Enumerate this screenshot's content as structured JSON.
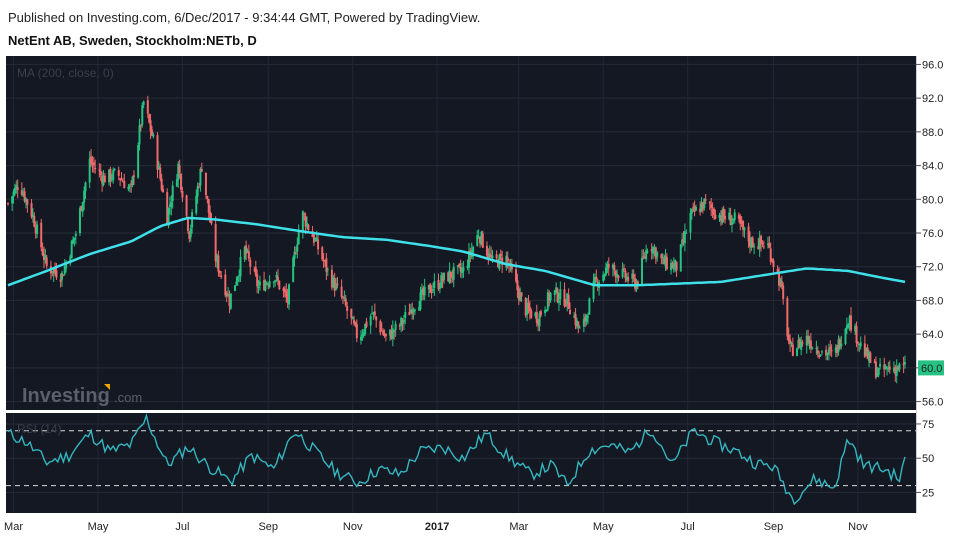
{
  "header": {
    "published": "Published on Investing.com, 6/Dec/2017 - 9:34:44 GMT, Powered by TradingView.",
    "symbol": "NetEnt AB, Sweden, Stockholm:NETb, D"
  },
  "indicators": {
    "ma_label": "MA (200, close, 0)",
    "rsi_label": "RSI (14)"
  },
  "logo": {
    "brand": "Investing",
    "suffix": ".com"
  },
  "colors": {
    "background": "#141823",
    "up": "#26c281",
    "down": "#ef6a6a",
    "ma": "#3ee0ea",
    "rsi": "#35b6bf",
    "price_tag": "#26c281"
  },
  "chart_data": {
    "type": "candlestick",
    "price_axis": {
      "ylim": [
        55,
        97
      ],
      "ticks": [
        "96.0",
        "92.0",
        "88.0",
        "84.0",
        "80.0",
        "76.0",
        "72.0",
        "68.0",
        "64.0",
        "60.0",
        "56.0"
      ]
    },
    "rsi_axis": {
      "ylim": [
        10,
        83
      ],
      "ticks": [
        "75",
        "50",
        "25"
      ],
      "bands": [
        30,
        70
      ]
    },
    "x_labels": [
      {
        "label": "Mar",
        "bold": false
      },
      {
        "label": "May",
        "bold": false
      },
      {
        "label": "Jul",
        "bold": false
      },
      {
        "label": "Sep",
        "bold": false
      },
      {
        "label": "Nov",
        "bold": false
      },
      {
        "label": "2017",
        "bold": true
      },
      {
        "label": "Mar",
        "bold": false
      },
      {
        "label": "May",
        "bold": false
      },
      {
        "label": "Jul",
        "bold": false
      },
      {
        "label": "Sep",
        "bold": false
      },
      {
        "label": "Nov",
        "bold": false
      }
    ],
    "last_price": "60.0",
    "price_path": [
      [
        "2016-02-26",
        79.5
      ],
      [
        "2016-03-05",
        82.0
      ],
      [
        "2016-03-15",
        78.0
      ],
      [
        "2016-03-25",
        72.0
      ],
      [
        "2016-04-05",
        71.0
      ],
      [
        "2016-04-15",
        76.0
      ],
      [
        "2016-04-25",
        84.5
      ],
      [
        "2016-05-05",
        82.5
      ],
      [
        "2016-05-15",
        83.0
      ],
      [
        "2016-05-25",
        81.0
      ],
      [
        "2016-06-03",
        91.5
      ],
      [
        "2016-06-10",
        87.0
      ],
      [
        "2016-06-20",
        78.0
      ],
      [
        "2016-06-28",
        84.0
      ],
      [
        "2016-07-06",
        76.0
      ],
      [
        "2016-07-15",
        84.0
      ],
      [
        "2016-07-25",
        73.0
      ],
      [
        "2016-08-04",
        68.0
      ],
      [
        "2016-08-15",
        74.0
      ],
      [
        "2016-08-25",
        69.5
      ],
      [
        "2016-09-05",
        71.0
      ],
      [
        "2016-09-15",
        68.0
      ],
      [
        "2016-09-25",
        78.5
      ],
      [
        "2016-10-05",
        75.0
      ],
      [
        "2016-10-15",
        71.0
      ],
      [
        "2016-10-25",
        68.0
      ],
      [
        "2016-11-05",
        63.5
      ],
      [
        "2016-11-15",
        66.5
      ],
      [
        "2016-11-25",
        63.5
      ],
      [
        "2016-12-05",
        65.0
      ],
      [
        "2016-12-15",
        67.5
      ],
      [
        "2016-12-28",
        69.5
      ],
      [
        "2017-01-10",
        71.0
      ],
      [
        "2017-01-20",
        71.5
      ],
      [
        "2017-01-31",
        76.0
      ],
      [
        "2017-02-10",
        72.5
      ],
      [
        "2017-02-20",
        73.0
      ],
      [
        "2017-03-05",
        67.0
      ],
      [
        "2017-03-15",
        66.0
      ],
      [
        "2017-03-25",
        69.0
      ],
      [
        "2017-04-05",
        68.0
      ],
      [
        "2017-04-15",
        64.0
      ],
      [
        "2017-04-25",
        70.0
      ],
      [
        "2017-05-05",
        72.0
      ],
      [
        "2017-05-15",
        71.0
      ],
      [
        "2017-05-25",
        70.0
      ],
      [
        "2017-06-03",
        75.0
      ],
      [
        "2017-06-13",
        72.5
      ],
      [
        "2017-06-23",
        72.0
      ],
      [
        "2017-07-03",
        78.0
      ],
      [
        "2017-07-13",
        79.5
      ],
      [
        "2017-07-25",
        78.0
      ],
      [
        "2017-08-05",
        77.5
      ],
      [
        "2017-08-15",
        75.0
      ],
      [
        "2017-08-28",
        74.5
      ],
      [
        "2017-09-06",
        70.0
      ],
      [
        "2017-09-13",
        62.0
      ],
      [
        "2017-09-25",
        63.5
      ],
      [
        "2017-10-05",
        62.0
      ],
      [
        "2017-10-15",
        61.5
      ],
      [
        "2017-10-25",
        66.0
      ],
      [
        "2017-11-05",
        62.0
      ],
      [
        "2017-11-15",
        59.5
      ],
      [
        "2017-11-25",
        60.0
      ],
      [
        "2017-12-05",
        60.0
      ]
    ],
    "ma_path": [
      [
        "2016-02-26",
        69.8
      ],
      [
        "2016-03-25",
        71.5
      ],
      [
        "2016-04-25",
        73.5
      ],
      [
        "2016-05-25",
        75.0
      ],
      [
        "2016-06-15",
        76.8
      ],
      [
        "2016-07-05",
        77.8
      ],
      [
        "2016-07-25",
        77.6
      ],
      [
        "2016-08-25",
        77.0
      ],
      [
        "2016-09-25",
        76.2
      ],
      [
        "2016-10-25",
        75.5
      ],
      [
        "2016-11-25",
        75.2
      ],
      [
        "2016-12-25",
        74.5
      ],
      [
        "2017-01-20",
        73.8
      ],
      [
        "2017-02-20",
        72.3
      ],
      [
        "2017-03-20",
        71.5
      ],
      [
        "2017-04-25",
        69.8
      ],
      [
        "2017-05-25",
        69.8
      ],
      [
        "2017-06-25",
        70.0
      ],
      [
        "2017-07-25",
        70.2
      ],
      [
        "2017-08-25",
        71.0
      ],
      [
        "2017-09-25",
        71.8
      ],
      [
        "2017-10-25",
        71.5
      ],
      [
        "2017-11-15",
        70.8
      ],
      [
        "2017-12-05",
        70.2
      ]
    ],
    "rsi_path": [
      [
        "2016-02-26",
        68
      ],
      [
        "2016-03-10",
        62
      ],
      [
        "2016-03-25",
        47
      ],
      [
        "2016-04-10",
        52
      ],
      [
        "2016-04-25",
        68
      ],
      [
        "2016-05-10",
        55
      ],
      [
        "2016-05-25",
        60
      ],
      [
        "2016-06-05",
        79
      ],
      [
        "2016-06-20",
        45
      ],
      [
        "2016-07-05",
        58
      ],
      [
        "2016-07-20",
        44
      ],
      [
        "2016-08-05",
        33
      ],
      [
        "2016-08-20",
        52
      ],
      [
        "2016-09-05",
        42
      ],
      [
        "2016-09-20",
        70
      ],
      [
        "2016-10-05",
        55
      ],
      [
        "2016-10-20",
        40
      ],
      [
        "2016-11-05",
        32
      ],
      [
        "2016-11-20",
        42
      ],
      [
        "2016-12-05",
        38
      ],
      [
        "2016-12-20",
        55
      ],
      [
        "2017-01-05",
        58
      ],
      [
        "2017-01-20",
        50
      ],
      [
        "2017-02-05",
        68
      ],
      [
        "2017-02-20",
        52
      ],
      [
        "2017-03-10",
        38
      ],
      [
        "2017-03-25",
        45
      ],
      [
        "2017-04-05",
        30
      ],
      [
        "2017-04-20",
        55
      ],
      [
        "2017-05-05",
        60
      ],
      [
        "2017-05-20",
        54
      ],
      [
        "2017-06-05",
        72
      ],
      [
        "2017-06-20",
        45
      ],
      [
        "2017-07-05",
        70
      ],
      [
        "2017-07-20",
        62
      ],
      [
        "2017-08-05",
        55
      ],
      [
        "2017-08-20",
        46
      ],
      [
        "2017-09-01",
        44
      ],
      [
        "2017-09-15",
        20
      ],
      [
        "2017-10-01",
        35
      ],
      [
        "2017-10-15",
        28
      ],
      [
        "2017-10-25",
        65
      ],
      [
        "2017-11-05",
        45
      ],
      [
        "2017-11-20",
        42
      ],
      [
        "2017-12-01",
        35
      ],
      [
        "2017-12-05",
        48
      ]
    ]
  }
}
